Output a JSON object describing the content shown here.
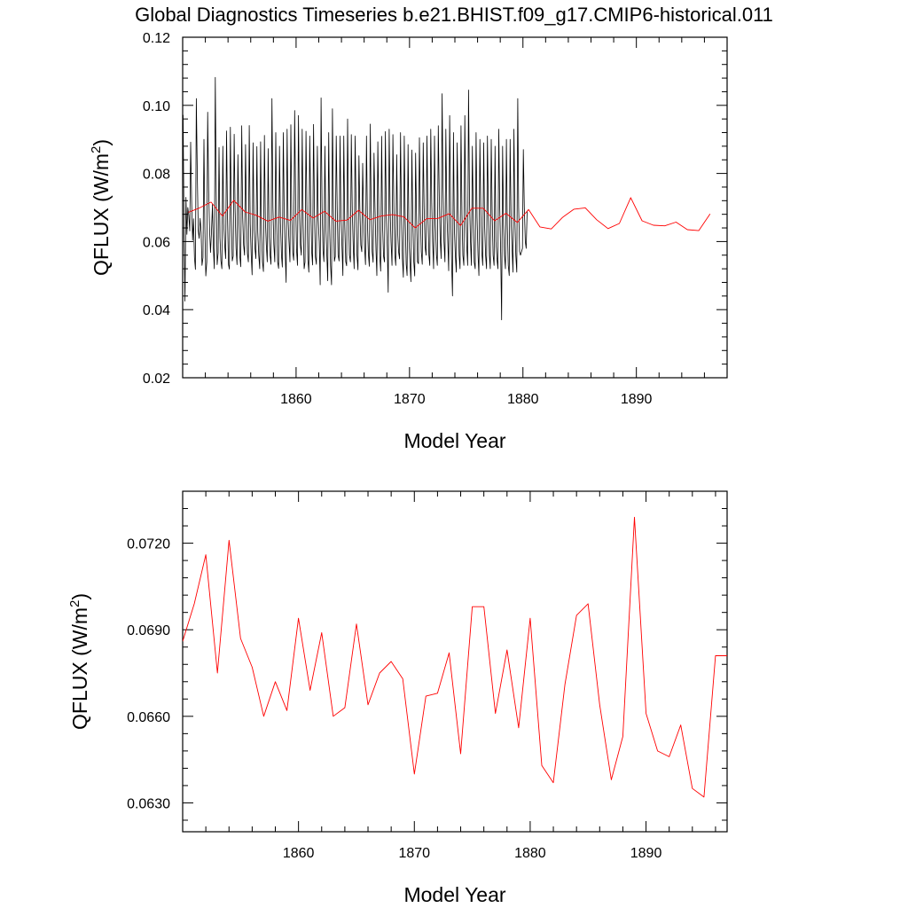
{
  "title": "Global Diagnostics Timeseries b.e21.BHIST.f09_g17.CMIP6-historical.011",
  "colors": {
    "monthly": "#000000",
    "annual": "#ff0000"
  },
  "chart_data": [
    {
      "type": "line",
      "xlabel": "Model Year",
      "ylabel": "QFLUX (W/m",
      "ylabel_sup": "2",
      "ylabel_end": ")",
      "xlim": [
        1850,
        1898
      ],
      "ylim": [
        0.02,
        0.12
      ],
      "xticks": [
        1860,
        1870,
        1880,
        1890
      ],
      "xtick_labels": [
        "1860",
        "1870",
        "1880",
        "1890"
      ],
      "yticks": [
        0.02,
        0.04,
        0.06,
        0.08,
        0.1,
        0.12
      ],
      "ytick_labels": [
        "0.02",
        "0.04",
        "0.06",
        "0.08",
        "0.10",
        "0.12"
      ],
      "grid": false,
      "series": [
        {
          "kind": "monthly",
          "x_start": 1850.04,
          "x_step": 0.08333,
          "values": [
            0.0972,
            0.062,
            0.0425,
            0.073,
            0.0621,
            0.07,
            0.0676,
            0.0631,
            0.0892,
            0.072,
            0.0604,
            0.0667,
            0.0553,
            0.0518,
            0.102,
            0.08,
            0.0632,
            0.0609,
            0.0668,
            0.0627,
            0.053,
            0.0553,
            0.09,
            0.0644,
            0.0499,
            0.054,
            0.098,
            0.075,
            0.0632,
            0.0568,
            0.0627,
            0.071,
            0.0582,
            0.052,
            0.1082,
            0.0755,
            0.0532,
            0.0567,
            0.0876,
            0.0611,
            0.0544,
            0.052,
            0.088,
            0.0653,
            0.059,
            0.055,
            0.0925,
            0.0668,
            0.0532,
            0.0519,
            0.0936,
            0.0672,
            0.0543,
            0.0557,
            0.0915,
            0.07,
            0.058,
            0.0532,
            0.0855,
            0.0672,
            0.0555,
            0.0526,
            0.094,
            0.0672,
            0.059,
            0.056,
            0.0885,
            0.0681,
            0.0565,
            0.054,
            0.0941,
            0.0652,
            0.056,
            0.0502,
            0.089,
            0.064,
            0.0582,
            0.055,
            0.0879,
            0.0627,
            0.056,
            0.052,
            0.0893,
            0.0626,
            0.054,
            0.0512,
            0.0912,
            0.0671,
            0.0591,
            0.054,
            0.0873,
            0.0619,
            0.056,
            0.0533,
            0.102,
            0.07,
            0.0592,
            0.054,
            0.092,
            0.066,
            0.054,
            0.0521,
            0.088,
            0.0655,
            0.0561,
            0.0525,
            0.092,
            0.0667,
            0.057,
            0.048,
            0.093,
            0.067,
            0.06,
            0.054,
            0.0943,
            0.0675,
            0.0567,
            0.0545,
            0.0985,
            0.0716,
            0.0577,
            0.053,
            0.097,
            0.0702,
            0.059,
            0.056,
            0.093,
            0.065,
            0.052,
            0.054,
            0.0924,
            0.07,
            0.0547,
            0.051,
            0.091,
            0.071,
            0.057,
            0.0531,
            0.0944,
            0.0676,
            0.0555,
            0.0533,
            0.088,
            0.0667,
            0.06,
            0.0473,
            0.1022,
            0.07,
            0.0573,
            0.0541,
            0.088,
            0.064,
            0.0567,
            0.0485,
            0.092,
            0.065,
            0.053,
            0.0473,
            0.099,
            0.07,
            0.0542,
            0.0556,
            0.091,
            0.0694,
            0.056,
            0.0543,
            0.091,
            0.068,
            0.059,
            0.05,
            0.091,
            0.065,
            0.0541,
            0.0529,
            0.096,
            0.0691,
            0.056,
            0.054,
            0.0914,
            0.069,
            0.0582,
            0.052,
            0.091,
            0.07,
            0.056,
            0.0517,
            0.0852,
            0.07,
            0.059,
            0.057,
            0.083,
            0.067,
            0.0581,
            0.0532,
            0.091,
            0.0651,
            0.0566,
            0.0527,
            0.0945,
            0.0696,
            0.057,
            0.0539,
            0.086,
            0.07,
            0.0577,
            0.05,
            0.0893,
            0.068,
            0.056,
            0.0513,
            0.0909,
            0.0652,
            0.0558,
            0.054,
            0.0923,
            0.0675,
            0.0578,
            0.0451,
            0.093,
            0.069,
            0.0598,
            0.053,
            0.0914,
            0.0699,
            0.056,
            0.053,
            0.0855,
            0.0625,
            0.057,
            0.0549,
            0.092,
            0.068,
            0.055,
            0.0495,
            0.091,
            0.066,
            0.0533,
            0.05,
            0.0885,
            0.0601,
            0.0539,
            0.0482,
            0.0869,
            0.067,
            0.0542,
            0.0499,
            0.086,
            0.0667,
            0.054,
            0.0535,
            0.0905,
            0.068,
            0.057,
            0.0533,
            0.089,
            0.07,
            0.0585,
            0.056,
            0.091,
            0.068,
            0.056,
            0.053,
            0.093,
            0.0714,
            0.06,
            0.052,
            0.091,
            0.065,
            0.056,
            0.053,
            0.094,
            0.073,
            0.061,
            0.055,
            0.1034,
            0.076,
            0.06,
            0.054,
            0.093,
            0.069,
            0.06,
            0.0514,
            0.097,
            0.07,
            0.055,
            0.044,
            0.092,
            0.064,
            0.056,
            0.051,
            0.089,
            0.068,
            0.056,
            0.052,
            0.094,
            0.068,
            0.056,
            0.053,
            0.097,
            0.0701,
            0.059,
            0.053,
            0.1045,
            0.072,
            0.06,
            0.053,
            0.088,
            0.066,
            0.054,
            0.052,
            0.092,
            0.067,
            0.056,
            0.05,
            0.09,
            0.068,
            0.057,
            0.053,
            0.089,
            0.065,
            0.056,
            0.052,
            0.091,
            0.068,
            0.056,
            0.052,
            0.09,
            0.068,
            0.056,
            0.053,
            0.088,
            0.06,
            0.055,
            0.052,
            0.093,
            0.07,
            0.056,
            0.037,
            0.088,
            0.065,
            0.056,
            0.052,
            0.09,
            0.065,
            0.053,
            0.05,
            0.09,
            0.066,
            0.058,
            0.051,
            0.093,
            0.066,
            0.056,
            0.051,
            0.102,
            0.07,
            0.057,
            0.056,
            0.057,
            0.058,
            0.087,
            0.07,
            0.06,
            0.058,
            0.069
          ]
        },
        {
          "kind": "annual",
          "x": [
            1850.5,
            1851.5,
            1852.5,
            1853.5,
            1854.5,
            1855.5,
            1856.5,
            1857.5,
            1858.5,
            1859.5,
            1860.5,
            1861.5,
            1862.5,
            1863.5,
            1864.5,
            1865.5,
            1866.5,
            1867.5,
            1868.5,
            1869.5,
            1870.5,
            1871.5,
            1872.5,
            1873.5,
            1874.5,
            1875.5,
            1876.5,
            1877.5,
            1878.5,
            1879.5,
            1880.5,
            1881.5,
            1882.5,
            1883.5,
            1884.5,
            1885.5,
            1886.5,
            1887.5,
            1888.5,
            1889.5,
            1890.5,
            1891.5,
            1892.5,
            1893.5,
            1894.5,
            1895.5,
            1896.5
          ],
          "values": [
            0.0686,
            0.0699,
            0.0716,
            0.0675,
            0.0721,
            0.0687,
            0.0677,
            0.066,
            0.0672,
            0.0662,
            0.0694,
            0.0669,
            0.0689,
            0.066,
            0.0663,
            0.0692,
            0.0664,
            0.0675,
            0.0679,
            0.0673,
            0.064,
            0.0667,
            0.0668,
            0.0682,
            0.0647,
            0.0698,
            0.0698,
            0.0661,
            0.0683,
            0.0656,
            0.0694,
            0.0643,
            0.0637,
            0.0671,
            0.0695,
            0.0699,
            0.0664,
            0.0638,
            0.0653,
            0.0729,
            0.0661,
            0.0648,
            0.0646,
            0.0657,
            0.0635,
            0.0632,
            0.0681
          ]
        }
      ]
    },
    {
      "type": "line",
      "xlabel": "Model Year",
      "ylabel": "QFLUX (W/m",
      "ylabel_sup": "2",
      "ylabel_end": ")",
      "xlim": [
        1850,
        1897
      ],
      "ylim": [
        0.062,
        0.0738
      ],
      "xticks": [
        1860,
        1870,
        1880,
        1890
      ],
      "xtick_labels": [
        "1860",
        "1870",
        "1880",
        "1890"
      ],
      "yticks": [
        0.063,
        0.066,
        0.069,
        0.072
      ],
      "ytick_labels": [
        "0.0630",
        "0.0660",
        "0.0690",
        "0.0720"
      ],
      "grid": false,
      "series": [
        {
          "kind": "annual",
          "x": [
            1850,
            1851,
            1852,
            1853,
            1854,
            1855,
            1856,
            1857,
            1858,
            1859,
            1860,
            1861,
            1862,
            1863,
            1864,
            1865,
            1866,
            1867,
            1868,
            1869,
            1870,
            1871,
            1872,
            1873,
            1874,
            1875,
            1876,
            1877,
            1878,
            1879,
            1880,
            1881,
            1882,
            1883,
            1884,
            1885,
            1886,
            1887,
            1888,
            1889,
            1890,
            1891,
            1892,
            1893,
            1894,
            1895,
            1896,
            1897
          ],
          "values": [
            0.0686,
            0.0699,
            0.0716,
            0.0675,
            0.0721,
            0.0687,
            0.0677,
            0.066,
            0.0672,
            0.0662,
            0.0694,
            0.0669,
            0.0689,
            0.066,
            0.0663,
            0.0692,
            0.0664,
            0.0675,
            0.0679,
            0.0673,
            0.064,
            0.0667,
            0.0668,
            0.0682,
            0.0647,
            0.0698,
            0.0698,
            0.0661,
            0.0683,
            0.0656,
            0.0694,
            0.0643,
            0.0637,
            0.0671,
            0.0695,
            0.0699,
            0.0664,
            0.0638,
            0.0653,
            0.0729,
            0.0661,
            0.0648,
            0.0646,
            0.0657,
            0.0635,
            0.0632,
            0.0681,
            0.0681
          ]
        }
      ]
    }
  ]
}
